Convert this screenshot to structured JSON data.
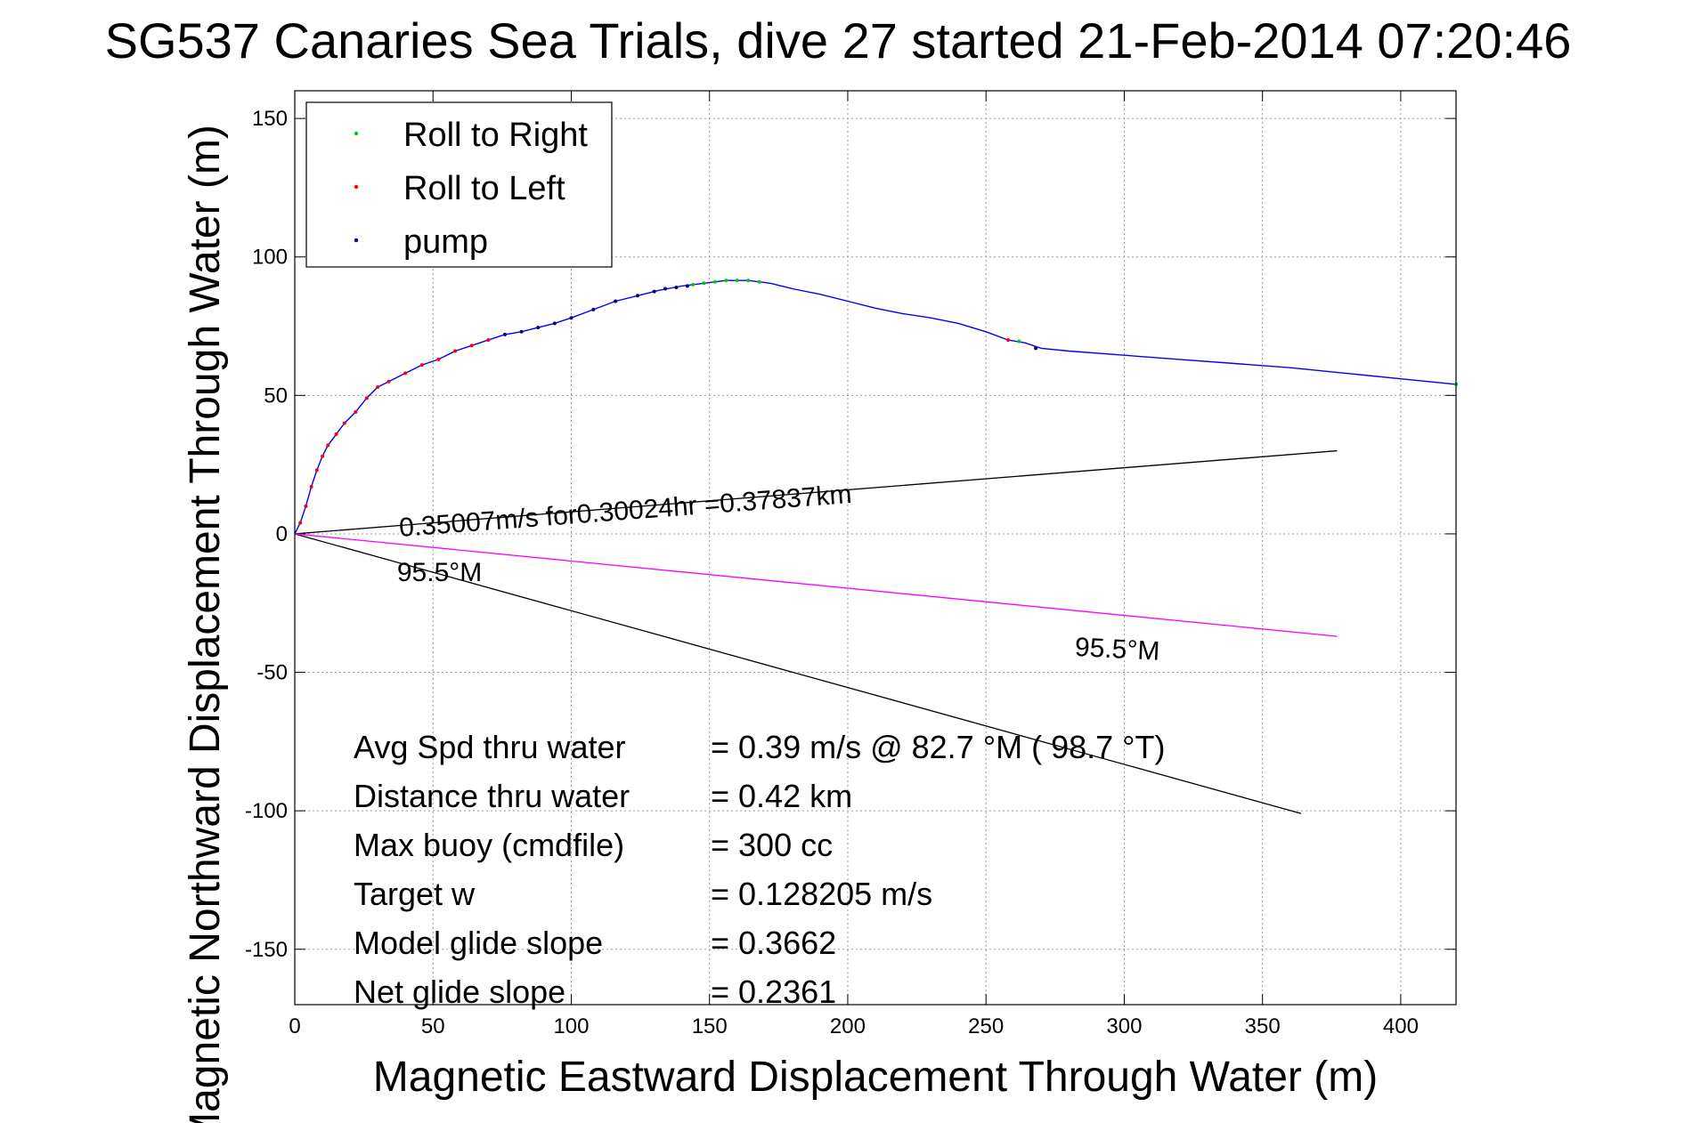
{
  "chart_data": {
    "type": "line",
    "title": "SG537 Canaries Sea Trials, dive 27 started 21-Feb-2014 07:20:46",
    "xlabel": "Magnetic Eastward Displacement Through Water (m)",
    "ylabel": "Magnetic Northward Displacement Through Water (m)",
    "xlim": [
      0,
      420
    ],
    "ylim": [
      -170,
      160
    ],
    "xticks": [
      0,
      50,
      100,
      150,
      200,
      250,
      300,
      350,
      400
    ],
    "yticks": [
      150,
      100,
      50,
      0,
      -50,
      -100,
      -150
    ],
    "grid": true,
    "legend_position": "top-left",
    "legend": [
      {
        "label": "Roll to Right",
        "color": "#00cc00"
      },
      {
        "label": "Roll to Left",
        "color": "#ff0000"
      },
      {
        "label": "pump",
        "color": "#000080"
      }
    ],
    "track": {
      "color": "#0000ff",
      "x": [
        0,
        2,
        4,
        6,
        8,
        10,
        12,
        15,
        18,
        22,
        26,
        30,
        34,
        40,
        46,
        52,
        58,
        64,
        70,
        76,
        82,
        88,
        94,
        100,
        108,
        116,
        124,
        132,
        140,
        148,
        156,
        164,
        172,
        180,
        190,
        200,
        210,
        220,
        230,
        240,
        250,
        258,
        264,
        270,
        280,
        300,
        320,
        340,
        360,
        380,
        400,
        410,
        420
      ],
      "y": [
        0,
        4,
        10,
        17,
        23,
        28,
        32,
        36,
        40,
        44,
        49,
        53,
        55,
        58,
        61,
        63,
        66,
        68,
        70,
        72,
        73,
        74.5,
        76,
        78,
        81,
        84,
        86,
        88,
        89.5,
        90.5,
        91.5,
        91.5,
        90.5,
        88.5,
        86.5,
        84,
        81.5,
        79.5,
        78,
        76,
        73,
        70,
        69,
        67,
        66,
        64.5,
        63,
        61.5,
        60,
        58,
        56,
        55,
        54
      ]
    },
    "markers": [
      {
        "series": "Roll to Left",
        "x": [
          2,
          4,
          6,
          8,
          10,
          12,
          15,
          18,
          22,
          26,
          30,
          34,
          40,
          46,
          52,
          58,
          64,
          70,
          258
        ],
        "y": [
          4,
          10,
          17,
          23,
          28,
          32,
          36,
          40,
          44,
          49,
          53,
          55,
          58,
          61,
          63,
          66,
          68,
          70,
          70
        ]
      },
      {
        "series": "Roll to Right",
        "x": [
          144,
          148,
          152,
          156,
          160,
          164,
          168,
          262,
          420
        ],
        "y": [
          90,
          90.5,
          91,
          91.5,
          91.5,
          91.5,
          91,
          69.5,
          54
        ]
      },
      {
        "series": "pump",
        "x": [
          76,
          82,
          88,
          94,
          100,
          108,
          116,
          124,
          130,
          134,
          138,
          142,
          268
        ],
        "y": [
          72,
          73,
          74.5,
          76,
          78,
          81,
          84,
          86,
          87.5,
          88.5,
          89,
          89.5,
          67
        ]
      }
    ],
    "reference_lines": [
      {
        "name": "heading-upper",
        "color": "#000000",
        "x": [
          0,
          377
        ],
        "y": [
          0,
          30
        ]
      },
      {
        "name": "heading-lower",
        "color": "#000000",
        "x": [
          0,
          364
        ],
        "y": [
          0,
          -101
        ]
      },
      {
        "name": "avg-heading",
        "color": "#ff00ff",
        "x": [
          0,
          377
        ],
        "y": [
          0,
          -37
        ]
      }
    ],
    "annotations": [
      {
        "text": "0.35007m/s for0.30024hr =0.37837km",
        "x": 38,
        "y": -1,
        "rotation": -4.3,
        "font_size": 30
      },
      {
        "text": "95.5°M",
        "x": 37,
        "y": -17,
        "rotation": 0,
        "font_size": 30
      },
      {
        "text": "95.5°M",
        "x": 282,
        "y": -44,
        "rotation": 3,
        "font_size": 30
      }
    ],
    "stats": [
      {
        "label": "Avg Spd thru water",
        "value": "=  0.39 m/s @  82.7 °M ( 98.7 °T)"
      },
      {
        "label": "Distance thru water",
        "value": "=  0.42 km"
      },
      {
        "label": "Max buoy (cmdfile)",
        "value": "= 300 cc"
      },
      {
        "label": "Target w",
        "value": "= 0.128205 m/s"
      },
      {
        "label": "Model glide slope",
        "value": "= 0.3662"
      },
      {
        "label": "Net glide slope",
        "value": "= 0.2361"
      }
    ]
  }
}
